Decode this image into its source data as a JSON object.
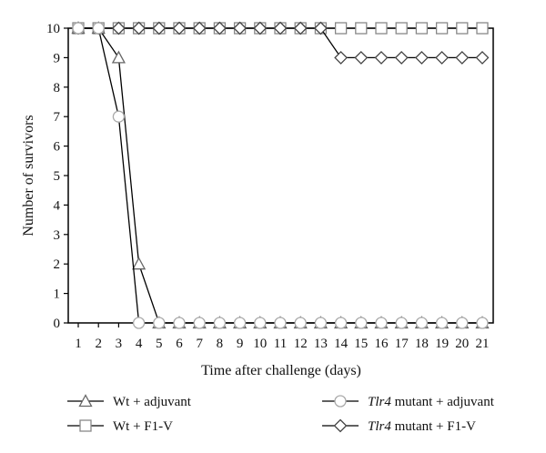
{
  "chart_data": {
    "type": "line",
    "xlabel": "Time after challenge (days)",
    "ylabel": "Number of survivors",
    "xlim": [
      1,
      21
    ],
    "ylim": [
      0,
      10
    ],
    "x_ticks": [
      1,
      2,
      3,
      4,
      5,
      6,
      7,
      8,
      9,
      10,
      11,
      12,
      13,
      14,
      15,
      16,
      17,
      18,
      19,
      20,
      21
    ],
    "y_ticks": [
      0,
      1,
      2,
      3,
      4,
      5,
      6,
      7,
      8,
      9,
      10
    ],
    "grid": false,
    "legend_position": "bottom",
    "series": [
      {
        "name": "Wt + adjuvant",
        "name_prefix": "",
        "name_rest": "Wt + adjuvant",
        "marker": "triangle",
        "color": "#666666",
        "x": [
          1,
          2,
          3,
          4,
          5,
          6,
          7,
          8,
          9,
          10,
          11,
          12,
          13,
          14,
          15,
          16,
          17,
          18,
          19,
          20,
          21
        ],
        "y": [
          10,
          10,
          9,
          2,
          0,
          0,
          0,
          0,
          0,
          0,
          0,
          0,
          0,
          0,
          0,
          0,
          0,
          0,
          0,
          0,
          0
        ]
      },
      {
        "name": "Wt + F1-V",
        "name_prefix": "",
        "name_rest": "Wt + F1-V",
        "marker": "square",
        "color": "#888888",
        "x": [
          1,
          2,
          3,
          4,
          5,
          6,
          7,
          8,
          9,
          10,
          11,
          12,
          13,
          14,
          15,
          16,
          17,
          18,
          19,
          20,
          21
        ],
        "y": [
          10,
          10,
          10,
          10,
          10,
          10,
          10,
          10,
          10,
          10,
          10,
          10,
          10,
          10,
          10,
          10,
          10,
          10,
          10,
          10,
          10
        ]
      },
      {
        "name": "Tlr4 mutant + adjuvant",
        "name_prefix": "Tlr4",
        "name_rest": " mutant + adjuvant",
        "marker": "circle",
        "color": "#aaaaaa",
        "x": [
          1,
          2,
          3,
          4,
          5,
          6,
          7,
          8,
          9,
          10,
          11,
          12,
          13,
          14,
          15,
          16,
          17,
          18,
          19,
          20,
          21
        ],
        "y": [
          10,
          10,
          7,
          0,
          0,
          0,
          0,
          0,
          0,
          0,
          0,
          0,
          0,
          0,
          0,
          0,
          0,
          0,
          0,
          0,
          0
        ]
      },
      {
        "name": "Tlr4 mutant + F1-V",
        "name_prefix": "Tlr4",
        "name_rest": " mutant + F1-V",
        "marker": "diamond",
        "color": "#444444",
        "x": [
          1,
          2,
          3,
          4,
          5,
          6,
          7,
          8,
          9,
          10,
          11,
          12,
          13,
          14,
          15,
          16,
          17,
          18,
          19,
          20,
          21
        ],
        "y": [
          10,
          10,
          10,
          10,
          10,
          10,
          10,
          10,
          10,
          10,
          10,
          10,
          10,
          9,
          9,
          9,
          9,
          9,
          9,
          9,
          9
        ]
      }
    ]
  }
}
